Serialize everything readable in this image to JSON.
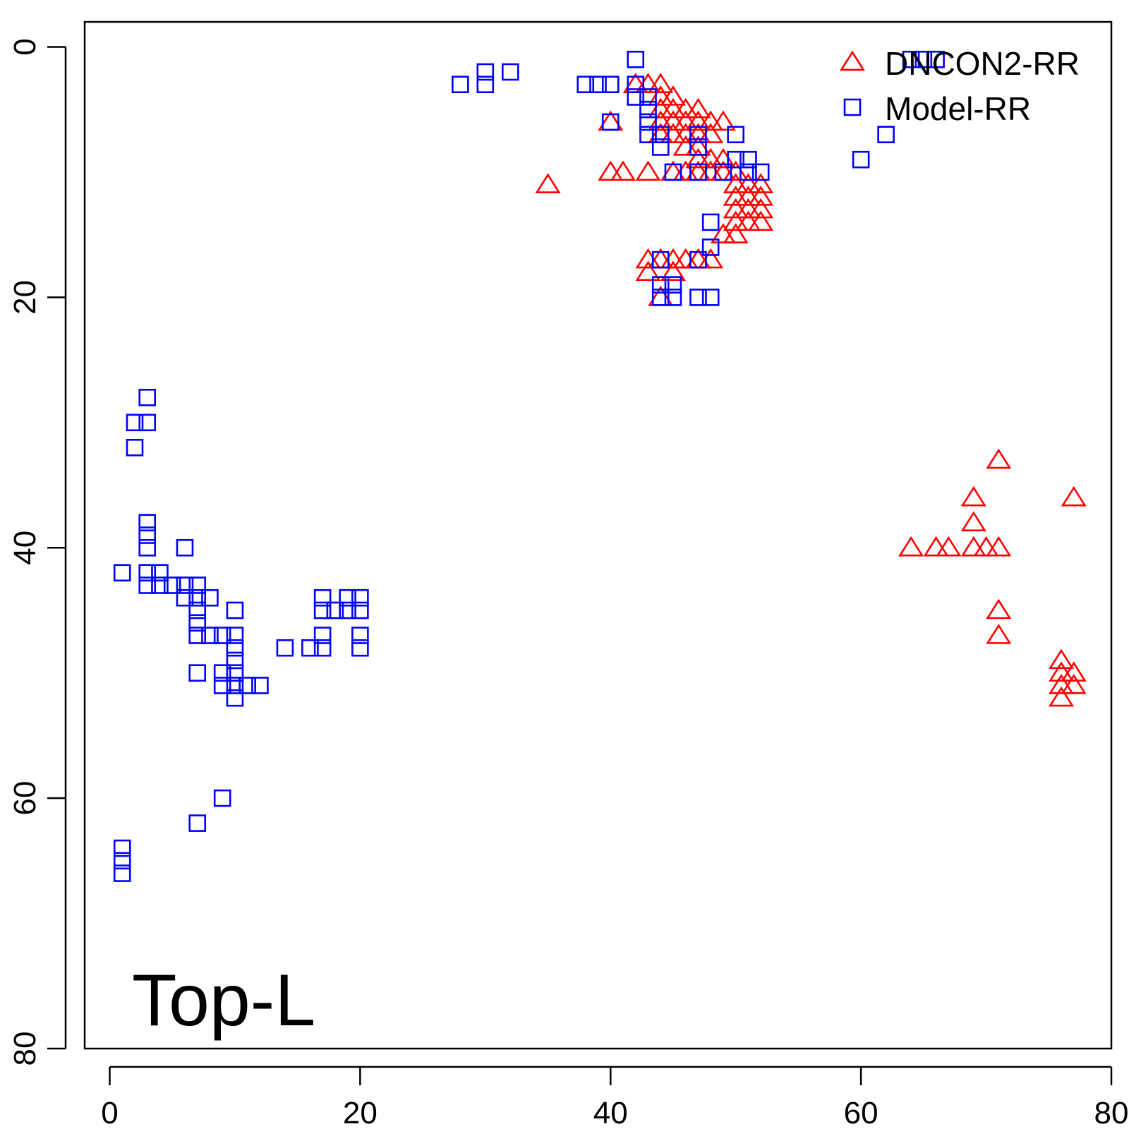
{
  "chart_data": {
    "type": "scatter",
    "panel_label": "Top-L",
    "x_axis": {
      "range": [
        -2,
        80
      ],
      "ticks": [
        0,
        20,
        40,
        60,
        80
      ]
    },
    "y_axis": {
      "range": [
        -2,
        80
      ],
      "reversed": true,
      "ticks": [
        0,
        20,
        40,
        60,
        80
      ]
    },
    "grid": false,
    "legend": {
      "placement": "top-right"
    },
    "series": [
      {
        "name": "DNCON2-RR",
        "marker": "triangle",
        "color": "#ff0000",
        "points": [
          [
            35,
            11
          ],
          [
            40,
            6
          ],
          [
            40,
            10
          ],
          [
            41,
            10
          ],
          [
            42,
            3
          ],
          [
            43,
            3
          ],
          [
            43,
            10
          ],
          [
            43,
            17
          ],
          [
            43,
            18
          ],
          [
            44,
            3
          ],
          [
            44,
            4
          ],
          [
            44,
            5
          ],
          [
            44,
            6
          ],
          [
            44,
            7
          ],
          [
            44,
            17
          ],
          [
            44,
            20
          ],
          [
            45,
            4
          ],
          [
            45,
            5
          ],
          [
            45,
            6
          ],
          [
            45,
            7
          ],
          [
            45,
            10
          ],
          [
            45,
            17
          ],
          [
            45,
            18
          ],
          [
            46,
            5
          ],
          [
            46,
            6
          ],
          [
            46,
            7
          ],
          [
            46,
            8
          ],
          [
            46,
            10
          ],
          [
            46,
            17
          ],
          [
            47,
            5
          ],
          [
            47,
            6
          ],
          [
            47,
            7
          ],
          [
            47,
            8
          ],
          [
            47,
            9
          ],
          [
            47,
            10
          ],
          [
            47,
            17
          ],
          [
            48,
            6
          ],
          [
            48,
            7
          ],
          [
            48,
            9
          ],
          [
            48,
            10
          ],
          [
            48,
            17
          ],
          [
            49,
            6
          ],
          [
            49,
            9
          ],
          [
            49,
            10
          ],
          [
            49,
            15
          ],
          [
            50,
            10
          ],
          [
            50,
            11
          ],
          [
            50,
            12
          ],
          [
            50,
            13
          ],
          [
            50,
            14
          ],
          [
            50,
            15
          ],
          [
            51,
            11
          ],
          [
            51,
            12
          ],
          [
            51,
            13
          ],
          [
            51,
            14
          ],
          [
            52,
            11
          ],
          [
            52,
            12
          ],
          [
            52,
            13
          ],
          [
            52,
            14
          ],
          [
            64,
            40
          ],
          [
            66,
            40
          ],
          [
            67,
            40
          ],
          [
            69,
            36
          ],
          [
            69,
            38
          ],
          [
            69,
            40
          ],
          [
            70,
            40
          ],
          [
            71,
            33
          ],
          [
            71,
            40
          ],
          [
            71,
            45
          ],
          [
            71,
            47
          ],
          [
            76,
            49
          ],
          [
            76,
            50
          ],
          [
            76,
            51
          ],
          [
            76,
            52
          ],
          [
            77,
            36
          ],
          [
            77,
            50
          ],
          [
            77,
            51
          ]
        ]
      },
      {
        "name": "Model-RR",
        "marker": "square",
        "color": "#0000ff",
        "points": [
          [
            1,
            42
          ],
          [
            1,
            64
          ],
          [
            1,
            65
          ],
          [
            1,
            66
          ],
          [
            2,
            30
          ],
          [
            2,
            32
          ],
          [
            3,
            28
          ],
          [
            3,
            30
          ],
          [
            3,
            38
          ],
          [
            3,
            39
          ],
          [
            3,
            40
          ],
          [
            3,
            42
          ],
          [
            3,
            43
          ],
          [
            4,
            42
          ],
          [
            4,
            43
          ],
          [
            5,
            43
          ],
          [
            6,
            40
          ],
          [
            6,
            43
          ],
          [
            6,
            44
          ],
          [
            7,
            43
          ],
          [
            7,
            44
          ],
          [
            7,
            45
          ],
          [
            7,
            46
          ],
          [
            7,
            47
          ],
          [
            7,
            50
          ],
          [
            7,
            62
          ],
          [
            8,
            44
          ],
          [
            8,
            47
          ],
          [
            9,
            47
          ],
          [
            9,
            50
          ],
          [
            9,
            51
          ],
          [
            9,
            60
          ],
          [
            10,
            45
          ],
          [
            10,
            47
          ],
          [
            10,
            48
          ],
          [
            10,
            49
          ],
          [
            10,
            50
          ],
          [
            10,
            51
          ],
          [
            10,
            52
          ],
          [
            11,
            51
          ],
          [
            12,
            51
          ],
          [
            14,
            48
          ],
          [
            16,
            48
          ],
          [
            17,
            44
          ],
          [
            17,
            45
          ],
          [
            17,
            47
          ],
          [
            17,
            48
          ],
          [
            18,
            45
          ],
          [
            19,
            44
          ],
          [
            19,
            45
          ],
          [
            20,
            44
          ],
          [
            20,
            45
          ],
          [
            20,
            47
          ],
          [
            20,
            48
          ],
          [
            28,
            3
          ],
          [
            30,
            2
          ],
          [
            30,
            3
          ],
          [
            32,
            2
          ],
          [
            38,
            3
          ],
          [
            39,
            3
          ],
          [
            40,
            3
          ],
          [
            40,
            6
          ],
          [
            42,
            1
          ],
          [
            42,
            3
          ],
          [
            42,
            4
          ],
          [
            43,
            4
          ],
          [
            43,
            5
          ],
          [
            43,
            6
          ],
          [
            43,
            7
          ],
          [
            44,
            7
          ],
          [
            44,
            8
          ],
          [
            44,
            17
          ],
          [
            44,
            19
          ],
          [
            44,
            20
          ],
          [
            45,
            10
          ],
          [
            45,
            19
          ],
          [
            45,
            20
          ],
          [
            47,
            7
          ],
          [
            47,
            8
          ],
          [
            47,
            10
          ],
          [
            47,
            17
          ],
          [
            47,
            20
          ],
          [
            48,
            14
          ],
          [
            48,
            16
          ],
          [
            48,
            20
          ],
          [
            49,
            10
          ],
          [
            50,
            7
          ],
          [
            50,
            9
          ],
          [
            51,
            9
          ],
          [
            51,
            10
          ],
          [
            52,
            10
          ],
          [
            60,
            9
          ],
          [
            62,
            7
          ],
          [
            64,
            1
          ],
          [
            65,
            1
          ],
          [
            66,
            1
          ]
        ]
      }
    ]
  }
}
